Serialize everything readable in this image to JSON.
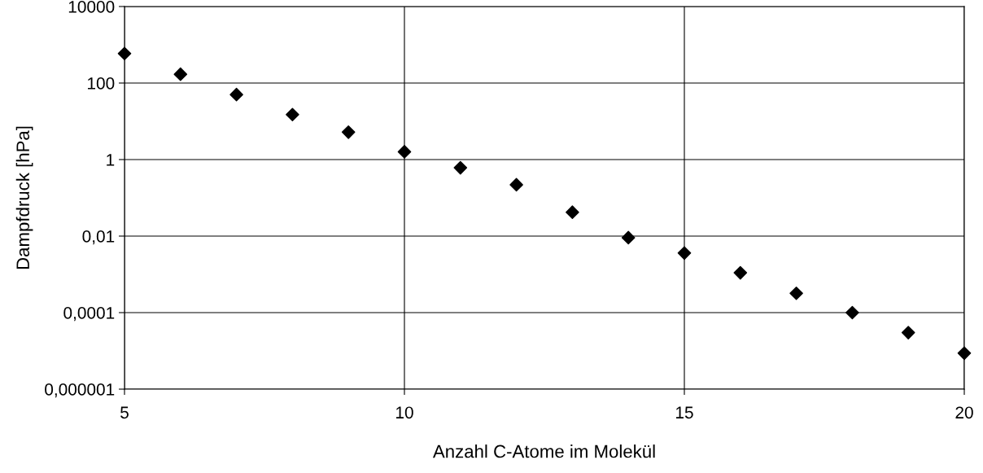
{
  "chart_data": {
    "type": "scatter",
    "xlabel": "Anzahl C-Atome im Molekül",
    "ylabel": "Dampfdruck [hPa]",
    "x": [
      5,
      6,
      7,
      8,
      9,
      10,
      11,
      12,
      13,
      14,
      15,
      16,
      17,
      18,
      19,
      20
    ],
    "series": [
      {
        "color": "#000000",
        "values": [
          590,
          170,
          50,
          15,
          5.2,
          1.6,
          0.61,
          0.22,
          0.042,
          0.0091,
          0.0036,
          0.0011,
          0.00032,
          0.0001,
          3e-05,
          8.7e-06
        ]
      }
    ],
    "log": "y",
    "xlim": [
      5,
      20
    ],
    "xticks": [
      5,
      10,
      15,
      20
    ],
    "ylim": [
      1e-06,
      10000
    ],
    "yticks": [
      {
        "value": 1e-06,
        "label": "0,000001"
      },
      {
        "value": 0.0001,
        "label": "0,0001"
      },
      {
        "value": 0.01,
        "label": "0,01"
      },
      {
        "value": 1,
        "label": "1"
      },
      {
        "value": 100,
        "label": "100"
      },
      {
        "value": 10000,
        "label": "10000"
      }
    ],
    "grid": true,
    "marker": "diamond"
  }
}
